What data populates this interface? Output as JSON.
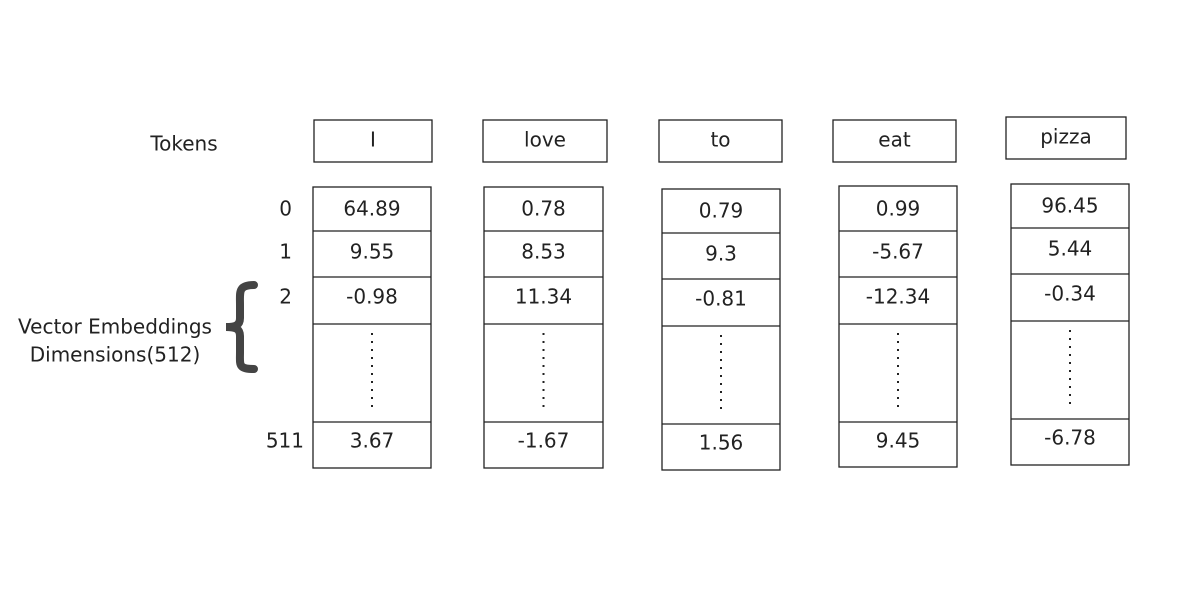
{
  "tokens_label": "Tokens",
  "side_label": [
    "Vector Embeddings",
    "Dimensions(512)"
  ],
  "row_labels": [
    0,
    1,
    2,
    511
  ],
  "columns": [
    {
      "token": "I",
      "values": [
        64.89,
        9.55,
        -0.98,
        3.67
      ]
    },
    {
      "token": "love",
      "values": [
        0.78,
        8.53,
        11.34,
        -1.67
      ]
    },
    {
      "token": "to",
      "values": [
        0.79,
        9.3,
        -0.81,
        1.56
      ]
    },
    {
      "token": "eat",
      "values": [
        0.99,
        -5.67,
        -12.34,
        9.45
      ]
    },
    {
      "token": "pizza",
      "values": [
        96.45,
        5.44,
        -0.34,
        -6.78
      ]
    }
  ]
}
